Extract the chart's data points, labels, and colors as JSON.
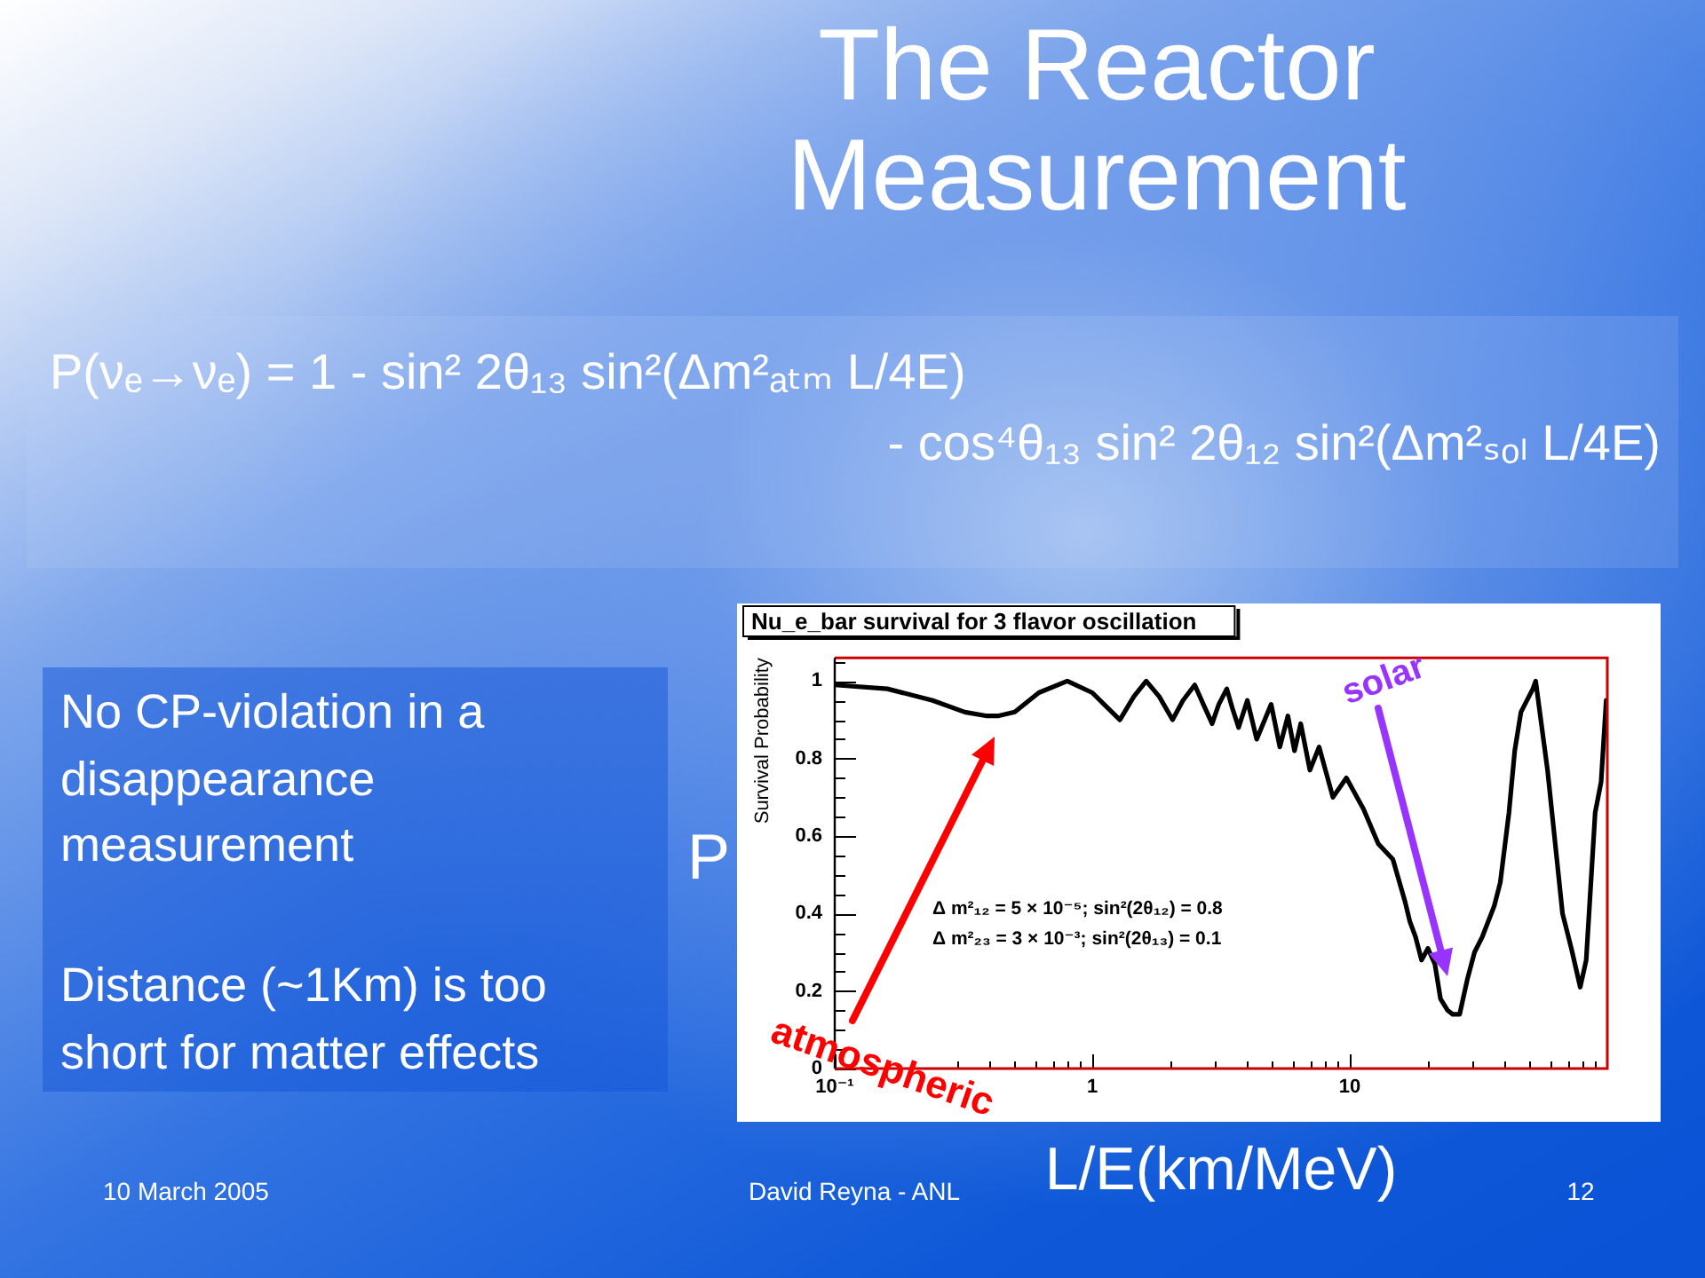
{
  "chart_data": {
    "type": "line",
    "title": "Nu_e_bar survival for 3 flavor oscillation",
    "xlabel": "L/E(km/MeV)",
    "ylabel": "Survival Probability",
    "log": "x",
    "xlim": [
      0.1,
      100
    ],
    "ylim": [
      0,
      1.06
    ],
    "xticks": [
      {
        "value": 0.1,
        "label": "10⁻¹"
      },
      {
        "value": 0.2,
        "label": null
      },
      {
        "value": 0.3,
        "label": null
      },
      {
        "value": 0.4,
        "label": null
      },
      {
        "value": 0.5,
        "label": null
      },
      {
        "value": 0.6,
        "label": null
      },
      {
        "value": 0.7,
        "label": null
      },
      {
        "value": 0.8,
        "label": null
      },
      {
        "value": 0.9,
        "label": null
      },
      1,
      {
        "value": 2,
        "label": null
      },
      {
        "value": 3,
        "label": null
      },
      {
        "value": 4,
        "label": null
      },
      {
        "value": 5,
        "label": null
      },
      {
        "value": 6,
        "label": null
      },
      {
        "value": 7,
        "label": null
      },
      {
        "value": 8,
        "label": null
      },
      {
        "value": 9,
        "label": null
      },
      10,
      {
        "value": 20,
        "label": null
      },
      {
        "value": 30,
        "label": null
      },
      {
        "value": 40,
        "label": null
      },
      {
        "value": 50,
        "label": null
      },
      {
        "value": 60,
        "label": null
      },
      {
        "value": 70,
        "label": null
      },
      {
        "value": 80,
        "label": null
      },
      {
        "value": 90,
        "label": null
      }
    ],
    "yticks": [
      0,
      {
        "value": 0.05,
        "label": null
      },
      {
        "value": 0.1,
        "label": null
      },
      {
        "value": 0.15,
        "label": null
      },
      0.2,
      {
        "value": 0.25,
        "label": null
      },
      {
        "value": 0.3,
        "label": null
      },
      {
        "value": 0.35,
        "label": null
      },
      0.4,
      {
        "value": 0.45,
        "label": null
      },
      {
        "value": 0.5,
        "label": null
      },
      {
        "value": 0.55,
        "label": null
      },
      0.6,
      {
        "value": 0.65,
        "label": null
      },
      {
        "value": 0.7,
        "label": null
      },
      {
        "value": 0.75,
        "label": null
      },
      0.8,
      {
        "value": 0.85,
        "label": null
      },
      {
        "value": 0.9,
        "label": null
      },
      {
        "value": 0.95,
        "label": null
      },
      1,
      {
        "value": 1.05,
        "label": null
      }
    ],
    "x": [
      0.1,
      0.16,
      0.24,
      0.32,
      0.39,
      0.43,
      0.5,
      0.62,
      0.8,
      1,
      1.15,
      1.28,
      1.45,
      1.62,
      1.82,
      2.05,
      2.25,
      2.5,
      2.7,
      2.92,
      3.1,
      3.33,
      3.5,
      3.7,
      4,
      4.35,
      4.95,
      5.35,
      5.75,
      6.1,
      6.45,
      7,
      7.6,
      8.6,
      9.7,
      11.3,
      12.9,
      14.7,
      16.4,
      17.1,
      18,
      19,
      20.1,
      21.4,
      22.5,
      24,
      25.1,
      26.7,
      28.6,
      30.5,
      32.7,
      36.4,
      38.4,
      41.5,
      43.7,
      46.2,
      51.4,
      52.7,
      58.6,
      67,
      72.5,
      78.5,
      82.8,
      89.7,
      94.6,
      99
    ],
    "series": [
      {
        "color": "#000000",
        "values": [
          0.99,
          0.98,
          0.95,
          0.92,
          0.91,
          0.91,
          0.92,
          0.97,
          1,
          0.97,
          0.93,
          0.9,
          0.96,
          1,
          0.96,
          0.9,
          0.95,
          0.99,
          0.94,
          0.89,
          0.94,
          0.98,
          0.93,
          0.88,
          0.95,
          0.85,
          0.94,
          0.83,
          0.91,
          0.82,
          0.89,
          0.77,
          0.83,
          0.7,
          0.75,
          0.67,
          0.58,
          0.54,
          0.43,
          0.38,
          0.34,
          0.28,
          0.31,
          0.27,
          0.18,
          0.15,
          0.14,
          0.14,
          0.23,
          0.3,
          0.34,
          0.42,
          0.48,
          0.66,
          0.82,
          0.92,
          0.98,
          1,
          0.77,
          0.4,
          0.31,
          0.21,
          0.28,
          0.66,
          0.74,
          0.95
        ]
      }
    ],
    "annotations": [
      "The Reactor Measurement",
      "P(νₑ→νₑ) = 1 - sin² 2θ₁₃ sin²(Δm²ₐₜₘ L/4E)",
      "- cos⁴θ₁₃ sin² 2θ₁₂ sin²(Δm²ₛₒₗ L/4E)",
      "No CP-violation in a disappearance measurement",
      "Distance (~1Km) is too short for matter effects",
      "P",
      "Δ m²₁₂ = 5 × 10⁻⁵; sin²(2θ₁₂) = 0.8",
      "Δ m²₂₃ = 3 × 10⁻³; sin²(2θ₁₃) = 0.1",
      "atmospheric",
      "solar",
      "10 March 2005",
      "David Reyna - ANL",
      "12"
    ]
  }
}
